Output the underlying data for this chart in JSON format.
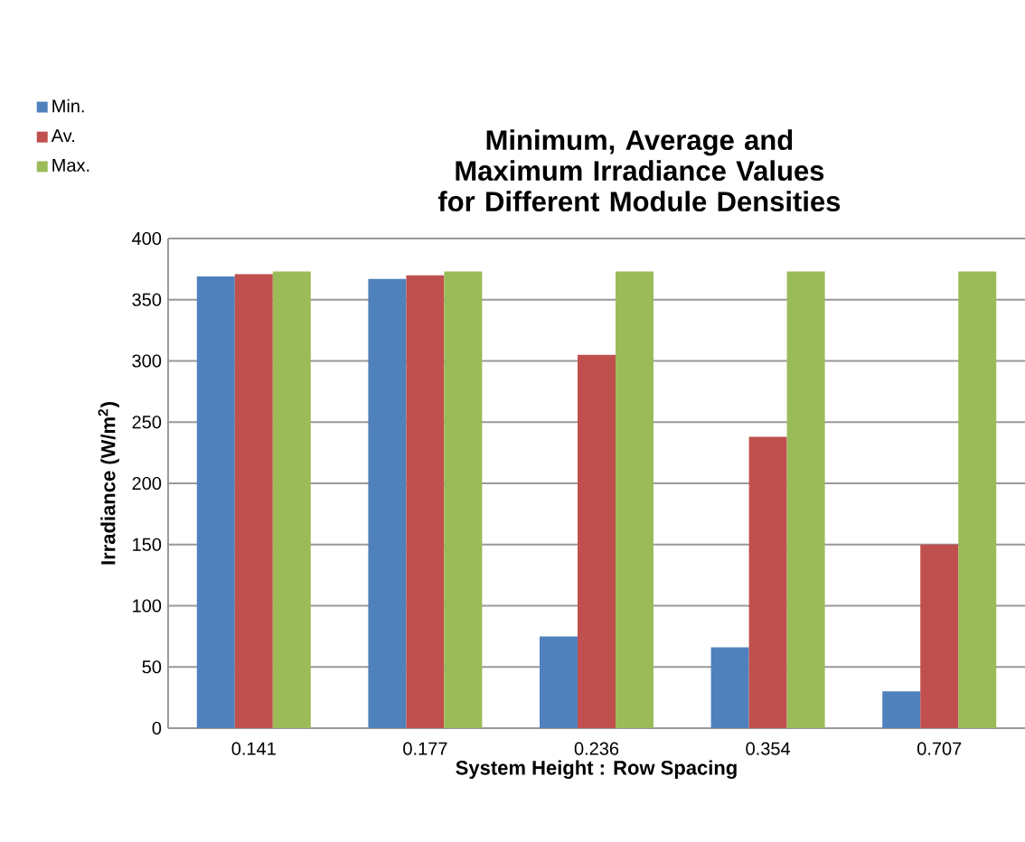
{
  "chart_data": {
    "type": "bar",
    "title": "Minimum, Average and Maximum Irradiance Values for Different Module Densities",
    "xlabel": "System Height : Row Spacing",
    "ylabel": "Irradiance (W/m$^{2}$)",
    "categories": [
      "0.141",
      "0.177",
      "0.236",
      "0.354",
      "0.707"
    ],
    "series": [
      {
        "name": "Min.",
        "color": "#4f81bd",
        "values": [
          369,
          367,
          75,
          66,
          30
        ]
      },
      {
        "name": "Av.",
        "color": "#c0504d",
        "values": [
          371,
          370,
          305,
          238,
          150
        ]
      },
      {
        "name": "Max.",
        "color": "#9bbb59",
        "values": [
          373,
          373,
          373,
          373,
          373
        ]
      }
    ],
    "ylim": [
      0,
      400
    ],
    "yticks": [
      0,
      50,
      100,
      150,
      200,
      250,
      300,
      350,
      400
    ],
    "grid": "y",
    "legend": "top left"
  }
}
